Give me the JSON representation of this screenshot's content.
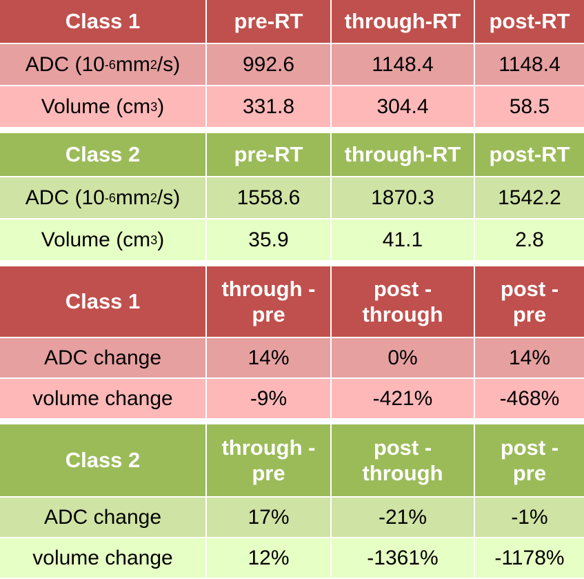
{
  "tables": [
    {
      "header": [
        "Class 1",
        "pre-RT",
        "through-RT",
        "post-RT"
      ],
      "rows": [
        {
          "label_main": "ADC (10",
          "label_sup1": "-6",
          "label_mid": " mm",
          "label_sup2": "2",
          "label_end": "/s)",
          "values": [
            "992.6",
            "1148.4",
            "1148.4"
          ]
        },
        {
          "label_main": "Volume (cm",
          "label_sup": "3",
          "label_end": ")",
          "values": [
            "331.8",
            "304.4",
            "58.5"
          ]
        }
      ]
    },
    {
      "header": [
        "Class 2",
        "pre-RT",
        "through-RT",
        "post-RT"
      ],
      "rows": [
        {
          "label_main": "ADC (10",
          "label_sup1": "-6",
          "label_mid": " mm",
          "label_sup2": "2",
          "label_end": "/s)",
          "values": [
            "1558.6",
            "1870.3",
            "1542.2"
          ]
        },
        {
          "label_main": "Volume (cm",
          "label_sup": "3",
          "label_end": ")",
          "values": [
            "35.9",
            "41.1",
            "2.8"
          ]
        }
      ]
    },
    {
      "header": [
        "Class 1",
        [
          "through -",
          "pre"
        ],
        [
          "post -",
          "through"
        ],
        [
          "post -",
          "pre"
        ]
      ],
      "rows": [
        {
          "label": "ADC change",
          "values": [
            "14%",
            "0%",
            "14%"
          ]
        },
        {
          "label": "volume change",
          "values": [
            "-9%",
            "-421%",
            "-468%"
          ]
        }
      ]
    },
    {
      "header": [
        "Class 2",
        [
          "through -",
          "pre"
        ],
        [
          "post -",
          "through"
        ],
        [
          "post -",
          "pre"
        ]
      ],
      "rows": [
        {
          "label": "ADC change",
          "values": [
            "17%",
            "-21%",
            "-1%"
          ]
        },
        {
          "label": "volume change",
          "values": [
            "12%",
            "-1361%",
            "-1178%"
          ]
        }
      ]
    }
  ],
  "colors": {
    "class1_header": "#c0504d",
    "class1_row1": "#e6a0a0",
    "class1_row2": "#ffb8b8",
    "class2_header": "#9bbb59",
    "class2_row1": "#cfe3a4",
    "class2_row2": "#e6ffc4"
  }
}
